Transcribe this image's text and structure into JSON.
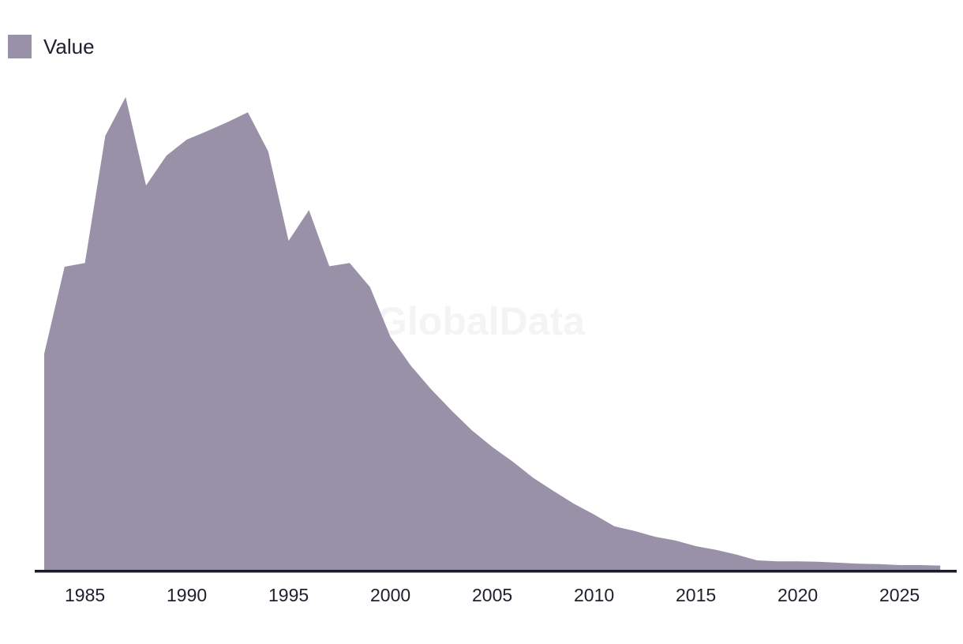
{
  "legend": {
    "label": "Value"
  },
  "watermark": "GlobalData",
  "colors": {
    "background": "#FFFFFF",
    "area_fill": "#9991A8",
    "axis_line": "#1B1B2D",
    "tick_text": "#20202E",
    "legend_text": "#20202E",
    "watermark_text": "#F4F4F4"
  },
  "chart_data": {
    "type": "area",
    "title": "",
    "xlabel": "",
    "ylabel": "",
    "x_range": [
      1983,
      2027
    ],
    "ylim": [
      0,
      100
    ],
    "y_axis_visible": false,
    "gridlines": false,
    "legend_position": "top-left",
    "interpolation": "linear",
    "units": "relative scale (% of 1987 peak); y-axis not shown in chart",
    "x_ticks": [
      "1985",
      "1990",
      "1995",
      "2000",
      "2005",
      "2010",
      "2015",
      "2020",
      "2025"
    ],
    "series": [
      {
        "name": "Value",
        "x": [
          1983,
          1984,
          1985,
          1986,
          1987,
          1988,
          1989,
          1990,
          1991,
          1992,
          1993,
          1994,
          1995,
          1996,
          1997,
          1998,
          1999,
          2000,
          2001,
          2002,
          2003,
          2004,
          2005,
          2006,
          2007,
          2008,
          2009,
          2010,
          2011,
          2012,
          2013,
          2014,
          2015,
          2016,
          2017,
          2018,
          2019,
          2020,
          2021,
          2022,
          2023,
          2024,
          2025,
          2026,
          2027
        ],
        "values": [
          45.7,
          64.1,
          64.9,
          91.8,
          100,
          81.3,
          87.6,
          91.0,
          92.8,
          94.7,
          96.8,
          88.5,
          69.6,
          76.1,
          64.2,
          64.9,
          59.8,
          49.3,
          43.2,
          38.2,
          33.7,
          29.5,
          26.0,
          22.9,
          19.5,
          16.7,
          14.0,
          11.7,
          9.2,
          8.2,
          7.0,
          6.2,
          5.0,
          4.2,
          3.2,
          2.0,
          1.8,
          1.8,
          1.7,
          1.5,
          1.3,
          1.2,
          1.0,
          1.0,
          0.9
        ]
      }
    ]
  }
}
